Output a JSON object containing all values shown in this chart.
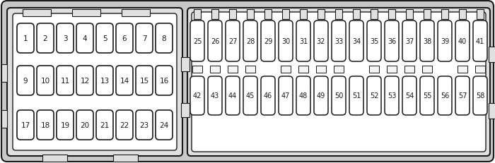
{
  "bg_color": "#ffffff",
  "border_color": "#1a1a1a",
  "fuse_fill": "#ffffff",
  "fuse_stroke": "#1a1a1a",
  "text_color": "#1a1a1a",
  "fig_width": 7.0,
  "fig_height": 2.32,
  "dpi": 100,
  "left_rows": [
    [
      1,
      2,
      3,
      4,
      5,
      6,
      7,
      8
    ],
    [
      9,
      10,
      11,
      12,
      13,
      14,
      15,
      16
    ],
    [
      17,
      18,
      19,
      20,
      21,
      22,
      23,
      24
    ]
  ],
  "right_top": [
    25,
    26,
    27,
    28,
    29,
    30,
    31,
    32,
    33,
    34,
    35,
    36,
    37,
    38,
    39,
    40,
    41
  ],
  "right_bot": [
    42,
    43,
    44,
    45,
    46,
    47,
    48,
    49,
    50,
    51,
    52,
    53,
    54,
    55,
    56,
    57,
    58
  ],
  "outer_fill": "#c8c8c8",
  "panel_fill": "#e0e0e0",
  "inner_fill": "#f5f5f5"
}
